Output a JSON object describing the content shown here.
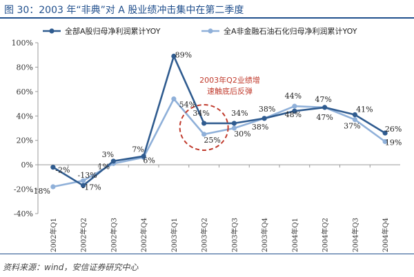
{
  "title": "图 30：2003 年“非典”对 A 股业绩冲击集中在第二季度",
  "source": "资料来源：wind，安信证券研究中心",
  "colors": {
    "series1": "#2f5b8f",
    "series2": "#8fb0d9",
    "annotation": "#c0392b",
    "title": "#1f4e8c"
  },
  "annotation": {
    "line1": "2003年Q2业绩增",
    "line2": "速触底后反弹"
  },
  "chart_data": {
    "type": "line",
    "x": [
      "2002年Q1",
      "2002年Q2",
      "2002年Q3",
      "2002年Q4",
      "2003年Q1",
      "2003年Q2",
      "2003年Q3",
      "2003年Q4",
      "2004年Q1",
      "2004年Q2",
      "2004年Q3",
      "2004年Q4"
    ],
    "ylim": [
      -40,
      100
    ],
    "yticks": [
      "100%",
      "80%",
      "60%",
      "40%",
      "20%",
      "0%",
      "-20%",
      "-40%"
    ],
    "ytick_values": [
      100,
      80,
      60,
      40,
      20,
      0,
      -20,
      -40
    ],
    "grid": false,
    "legend": "top",
    "series": [
      {
        "name": "全部A股归母净利润累计YOY",
        "values": [
          -2,
          -17,
          3,
          7,
          89,
          34,
          34,
          38,
          44,
          47,
          41,
          26
        ],
        "labels": [
          "-2%",
          "-17%",
          "3%",
          "7%",
          "89%",
          "34%",
          "34%",
          "38%",
          "44%",
          "47%",
          "41%",
          "26%"
        ]
      },
      {
        "name": "全A非金融石油石化归母净利润累计YOY",
        "values": [
          -18,
          -13,
          1,
          6,
          54,
          25,
          30,
          38,
          48,
          47,
          37,
          19
        ],
        "labels": [
          "-18%",
          "-13%",
          "1%",
          "6%",
          "54%",
          "25%",
          "30%",
          "38%",
          "48%",
          "47%",
          "37%",
          "19%"
        ]
      }
    ]
  }
}
